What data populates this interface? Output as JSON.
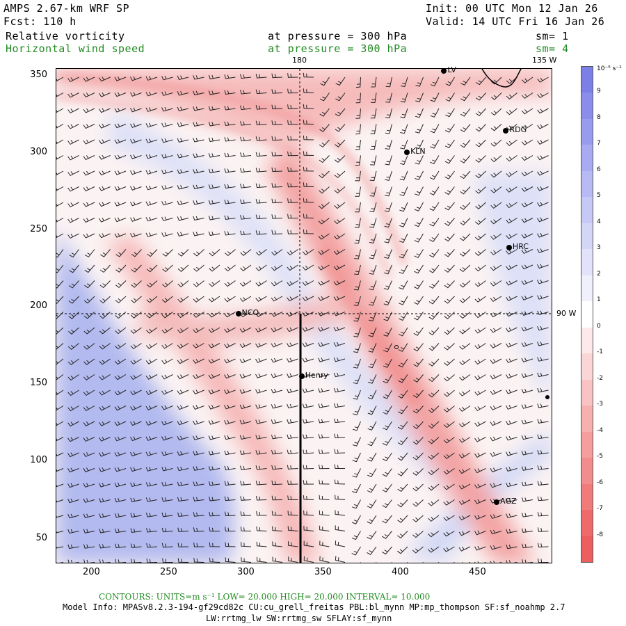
{
  "header": {
    "model": "AMPS 2.67-km WRF SP",
    "forecast": "Fcst:  110 h",
    "init": "Init: 00 UTC Mon 12 Jan 26",
    "valid": "Valid: 14 UTC Fri 16 Jan 26",
    "field1": {
      "name": "Relative vorticity",
      "pressure": "at pressure =  300 hPa",
      "sm": "sm= 1"
    },
    "field2": {
      "name": "Horizontal wind speed",
      "pressure": "at pressure =  300 hPa",
      "sm": "sm= 4"
    }
  },
  "map": {
    "top_labels": [
      "180",
      "135 W"
    ],
    "right_label": "90 W",
    "x_ticks": [
      "200",
      "250",
      "300",
      "350",
      "400",
      "450"
    ],
    "y_ticks": [
      "350",
      "300",
      "250",
      "200",
      "150",
      "100",
      "50"
    ],
    "x_range": [
      175,
      495
    ],
    "y_range": [
      33,
      355
    ],
    "stations": [
      {
        "name": "RDG",
        "x": 466,
        "y": 314
      },
      {
        "name": "KLN",
        "x": 402,
        "y": 300
      },
      {
        "name": "HRC",
        "x": 468,
        "y": 238
      },
      {
        "name": "NCO",
        "x": 293,
        "y": 195
      },
      {
        "name": "Henry",
        "x": 334,
        "y": 154
      },
      {
        "name": "AGZ",
        "x": 460,
        "y": 72
      },
      {
        "name": "LV",
        "x": 426,
        "y": 353
      }
    ]
  },
  "colorbar": {
    "unit": "10⁻⁵ s⁻¹",
    "labels": [
      "9",
      "8",
      "7",
      "6",
      "5",
      "4",
      "3",
      "2",
      "1",
      "0",
      "-1",
      "-2",
      "-3",
      "-4",
      "-5",
      "-6",
      "-7",
      "-8"
    ]
  },
  "footer": {
    "contours": "CONTOURS:  UNITS=m s⁻¹  LOW=  20.000      HIGH=  20.000      INTERVAL=   10.000",
    "model_info": "Model Info: MPASv8.2.3-194-gf29cd82c CU:cu_grell_freitas PBL:bl_mynn MP:mp_thompson SF:sf_noahmp 2.7",
    "model_info2": "LW:rrtmg_lw SW:rrtmg_sw SFLAY:sf_mynn"
  }
}
